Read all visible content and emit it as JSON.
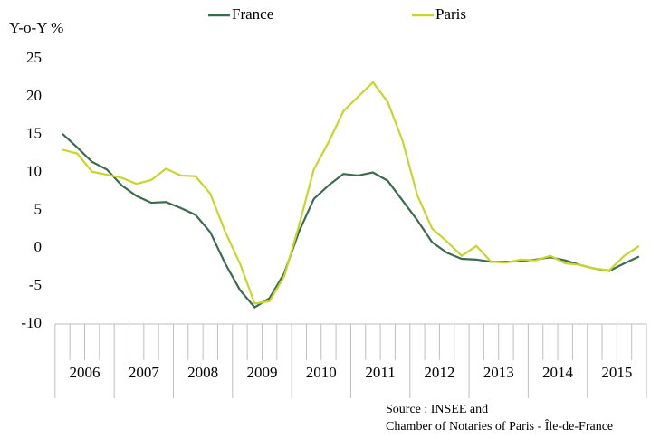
{
  "chart_data": {
    "type": "line",
    "y_axis_label": "Y-o-Y %",
    "year_labels": [
      "2006",
      "2007",
      "2008",
      "2009",
      "2010",
      "2011",
      "2012",
      "2013",
      "2014",
      "2015"
    ],
    "series": [
      {
        "name": "France",
        "color": "#3d6b50",
        "values": [
          15.1,
          13.3,
          11.4,
          10.4,
          8.3,
          6.9,
          6.0,
          6.1,
          5.3,
          4.4,
          2.1,
          -2.0,
          -5.5,
          -7.8,
          -6.6,
          -3.3,
          2.2,
          6.5,
          8.3,
          9.8,
          9.6,
          10.0,
          8.9,
          6.3,
          3.7,
          0.8,
          -0.6,
          -1.4,
          -1.5,
          -1.8,
          -1.8,
          -1.7,
          -1.5,
          -1.2,
          -1.6,
          -2.2,
          -2.7,
          -3.0,
          -2.0,
          -1.1
        ]
      },
      {
        "name": "Paris",
        "color": "#c8d52a",
        "values": [
          13.0,
          12.5,
          10.1,
          9.7,
          9.3,
          8.5,
          9.0,
          10.5,
          9.6,
          9.5,
          7.2,
          2.2,
          -2.0,
          -7.3,
          -7.0,
          -3.7,
          3.0,
          10.4,
          14.0,
          18.1,
          20.0,
          21.9,
          19.3,
          14.2,
          7.0,
          2.6,
          0.9,
          -1.0,
          0.3,
          -1.8,
          -1.9,
          -1.5,
          -1.6,
          -1.0,
          -2.0,
          -2.2,
          -2.7,
          -2.9,
          -1.0,
          0.3
        ]
      }
    ],
    "ylim": [
      -10,
      25
    ],
    "yticks": [
      -10,
      -5,
      0,
      5,
      10,
      15,
      20,
      25
    ],
    "grid": false,
    "source": [
      "Source : INSEE and",
      "Chamber of Notaries of Paris - Île-de-France"
    ]
  }
}
